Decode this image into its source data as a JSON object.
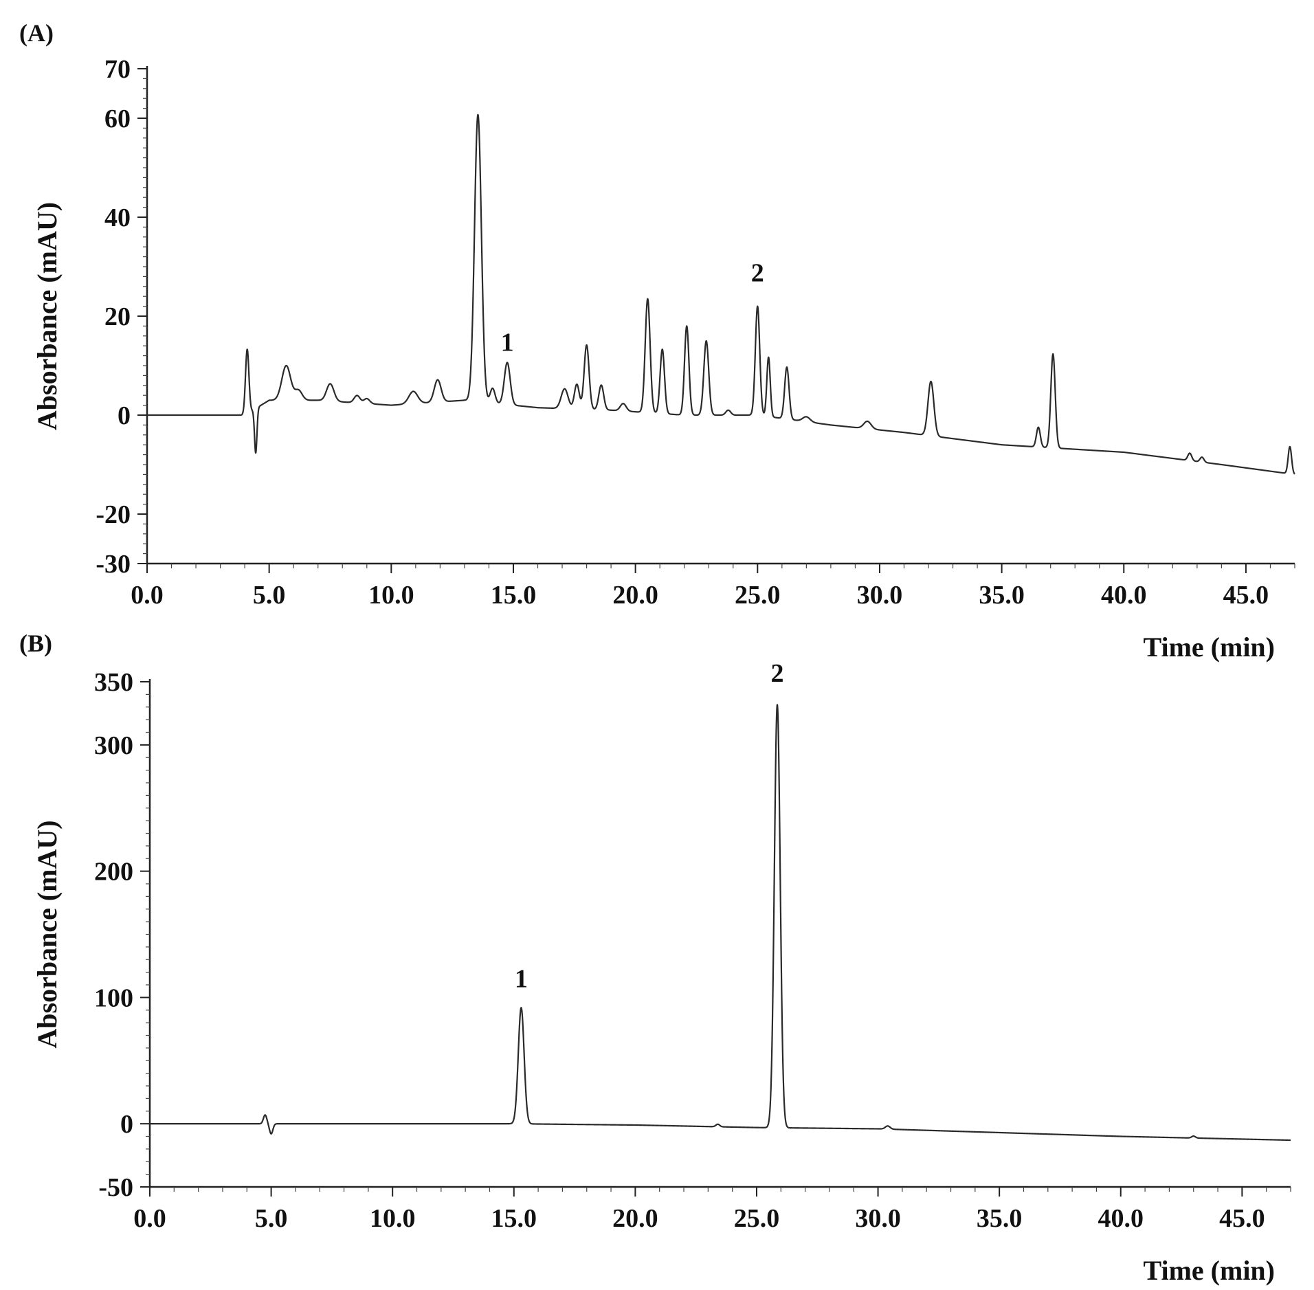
{
  "chart_data": [
    {
      "type": "line",
      "panel_label": "(A)",
      "xlabel": "Time (min)",
      "ylabel": "Absorbance (mAU)",
      "xlim": [
        0,
        47
      ],
      "ylim": [
        -30,
        70
      ],
      "xticks": [
        0,
        5,
        10,
        15,
        20,
        25,
        30,
        35,
        40,
        45
      ],
      "xtick_labels": [
        "0.0",
        "5.0",
        "10.0",
        "15.0",
        "20.0",
        "25.0",
        "30.0",
        "35.0",
        "40.0",
        "45.0"
      ],
      "yticks": [
        -30,
        -20,
        0,
        20,
        40,
        60,
        70
      ],
      "ytick_labels": [
        "-30",
        "-20",
        "0",
        "20",
        "40",
        "60",
        "70"
      ],
      "baseline": [
        [
          0,
          0
        ],
        [
          4.0,
          0
        ],
        [
          5.0,
          3
        ],
        [
          7,
          3
        ],
        [
          10,
          2
        ],
        [
          13,
          3
        ],
        [
          16,
          1.5
        ],
        [
          19,
          1
        ],
        [
          22,
          0
        ],
        [
          25,
          0
        ],
        [
          28,
          -2
        ],
        [
          31,
          -3.5
        ],
        [
          35,
          -6
        ],
        [
          40,
          -7.5
        ],
        [
          44,
          -10
        ],
        [
          47,
          -12
        ]
      ],
      "peaks": [
        {
          "t": 4.1,
          "h": 13,
          "w": 0.07
        },
        {
          "t": 4.45,
          "h": -9,
          "w": 0.05
        },
        {
          "t": 5.7,
          "h": 7,
          "w": 0.18
        },
        {
          "t": 6.2,
          "h": 2,
          "w": 0.15
        },
        {
          "t": 7.5,
          "h": 3.5,
          "w": 0.15
        },
        {
          "t": 8.6,
          "h": 1.5,
          "w": 0.12
        },
        {
          "t": 9.0,
          "h": 1.0,
          "w": 0.12
        },
        {
          "t": 10.9,
          "h": 2.5,
          "w": 0.18
        },
        {
          "t": 11.9,
          "h": 4.5,
          "w": 0.14
        },
        {
          "t": 13.55,
          "h": 58,
          "w": 0.14
        },
        {
          "t": 14.15,
          "h": 3,
          "w": 0.1
        },
        {
          "t": 14.75,
          "h": 8.5,
          "w": 0.12
        },
        {
          "t": 17.1,
          "h": 4,
          "w": 0.14
        },
        {
          "t": 17.6,
          "h": 5,
          "w": 0.1
        },
        {
          "t": 18.0,
          "h": 13,
          "w": 0.1
        },
        {
          "t": 18.6,
          "h": 5,
          "w": 0.1
        },
        {
          "t": 19.5,
          "h": 1.5,
          "w": 0.12
        },
        {
          "t": 20.5,
          "h": 23,
          "w": 0.1
        },
        {
          "t": 21.1,
          "h": 13,
          "w": 0.09
        },
        {
          "t": 22.1,
          "h": 18,
          "w": 0.09
        },
        {
          "t": 22.9,
          "h": 15,
          "w": 0.1
        },
        {
          "t": 23.8,
          "h": 1,
          "w": 0.1
        },
        {
          "t": 25.0,
          "h": 22,
          "w": 0.09
        },
        {
          "t": 25.45,
          "h": 12,
          "w": 0.07
        },
        {
          "t": 26.2,
          "h": 10.5,
          "w": 0.09
        },
        {
          "t": 27.0,
          "h": 1,
          "w": 0.15
        },
        {
          "t": 29.5,
          "h": 1.5,
          "w": 0.15
        },
        {
          "t": 32.1,
          "h": 11,
          "w": 0.12
        },
        {
          "t": 36.5,
          "h": 4,
          "w": 0.08
        },
        {
          "t": 37.1,
          "h": 19,
          "w": 0.09
        },
        {
          "t": 42.7,
          "h": 1.5,
          "w": 0.08
        },
        {
          "t": 43.2,
          "h": 1.0,
          "w": 0.08
        },
        {
          "t": 46.8,
          "h": 5.5,
          "w": 0.07
        }
      ],
      "annotations": [
        {
          "text": "1",
          "x": 14.75,
          "y": 13
        },
        {
          "text": "2",
          "x": 25.0,
          "y": 27
        }
      ]
    },
    {
      "type": "line",
      "panel_label": "(B)",
      "xlabel": "Time (min)",
      "ylabel": "Absorbance (mAU)",
      "xlim": [
        0,
        47
      ],
      "ylim": [
        -50,
        350
      ],
      "xticks": [
        0,
        5,
        10,
        15,
        20,
        25,
        30,
        35,
        40,
        45
      ],
      "xtick_labels": [
        "0.0",
        "5.0",
        "10.0",
        "15.0",
        "20.0",
        "25.0",
        "30.0",
        "35.0",
        "40.0",
        "45.0"
      ],
      "yticks": [
        -50,
        0,
        100,
        200,
        300,
        350
      ],
      "ytick_labels": [
        "-50",
        "0",
        "100",
        "200",
        "300",
        "350"
      ],
      "baseline": [
        [
          0,
          0
        ],
        [
          10,
          0
        ],
        [
          15,
          0
        ],
        [
          20,
          -1
        ],
        [
          25,
          -3
        ],
        [
          30,
          -4
        ],
        [
          35,
          -7
        ],
        [
          40,
          -10
        ],
        [
          47,
          -13
        ]
      ],
      "peaks": [
        {
          "t": 4.75,
          "h": 7,
          "w": 0.07
        },
        {
          "t": 5.0,
          "h": -8,
          "w": 0.07
        },
        {
          "t": 15.3,
          "h": 92,
          "w": 0.12
        },
        {
          "t": 23.4,
          "h": 2,
          "w": 0.08
        },
        {
          "t": 25.85,
          "h": 335,
          "w": 0.12
        },
        {
          "t": 30.4,
          "h": 2.5,
          "w": 0.1
        },
        {
          "t": 43.0,
          "h": 1.5,
          "w": 0.08
        }
      ],
      "annotations": [
        {
          "text": "1",
          "x": 15.3,
          "y": 108
        },
        {
          "text": "2",
          "x": 25.85,
          "y": 350
        }
      ]
    }
  ]
}
